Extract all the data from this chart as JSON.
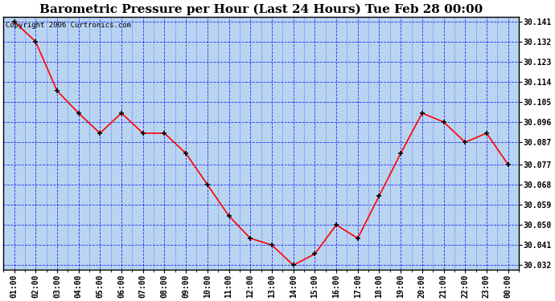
{
  "title": "Barometric Pressure per Hour (Last 24 Hours) Tue Feb 28 00:00",
  "copyright": "Copyright 2006 Curtronics.com",
  "hours": [
    "01:00",
    "02:00",
    "03:00",
    "04:00",
    "05:00",
    "06:00",
    "07:00",
    "08:00",
    "09:00",
    "10:00",
    "11:00",
    "12:00",
    "13:00",
    "14:00",
    "15:00",
    "16:00",
    "17:00",
    "18:00",
    "19:00",
    "20:00",
    "21:00",
    "22:00",
    "23:00",
    "00:00"
  ],
  "values": [
    30.141,
    30.132,
    30.11,
    30.1,
    30.091,
    30.1,
    30.091,
    30.091,
    30.082,
    30.068,
    30.054,
    30.044,
    30.041,
    30.032,
    30.037,
    30.05,
    30.044,
    30.063,
    30.082,
    30.1,
    30.096,
    30.087,
    30.091,
    30.077
  ],
  "ylim_min": 30.032,
  "ylim_max": 30.141,
  "yticks": [
    30.032,
    30.041,
    30.05,
    30.059,
    30.068,
    30.077,
    30.087,
    30.096,
    30.105,
    30.114,
    30.123,
    30.132,
    30.141
  ],
  "line_color": "red",
  "marker_color": "darkred",
  "bg_color": "#b8d4f0",
  "fig_bg_color": "#ffffff",
  "grid_color": "blue",
  "title_fontsize": 11,
  "tick_fontsize": 7,
  "copyright_fontsize": 6.5
}
